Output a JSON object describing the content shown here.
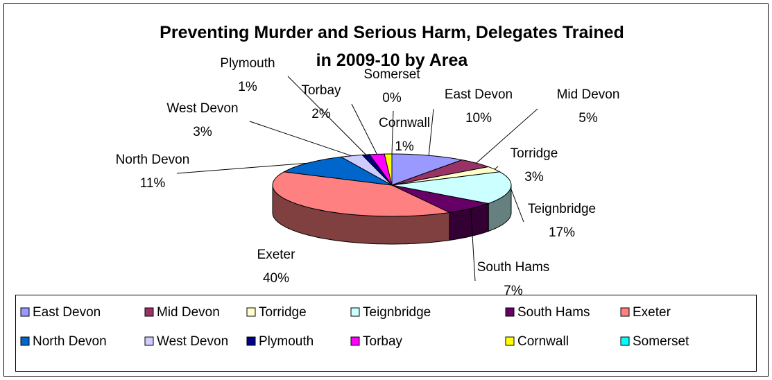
{
  "chart_data": {
    "type": "pie3d",
    "title": "Preventing Murder and Serious Harm, Delegates Trained in 2009-10 by Area",
    "categories": [
      "East Devon",
      "Mid Devon",
      "Torridge",
      "Teignbridge",
      "South Hams",
      "Exeter",
      "North Devon",
      "West Devon",
      "Plymouth",
      "Torbay",
      "Cornwall",
      "Somerset"
    ],
    "values": [
      10,
      5,
      3,
      17,
      7,
      40,
      11,
      3,
      1,
      2,
      1,
      0
    ],
    "value_labels": [
      "10%",
      "5%",
      "3%",
      "17%",
      "7%",
      "40%",
      "11%",
      "3%",
      "1%",
      "2%",
      "1%",
      "0%"
    ],
    "colors": [
      "#9999ff",
      "#993366",
      "#ffffcc",
      "#ccffff",
      "#660066",
      "#ff8080",
      "#0066cc",
      "#ccccff",
      "#000080",
      "#ff00ff",
      "#ffff00",
      "#00ffff"
    ],
    "legend": "bottom"
  }
}
